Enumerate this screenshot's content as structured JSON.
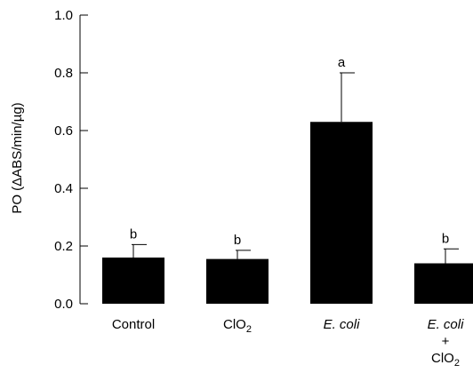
{
  "chart_data": {
    "type": "bar",
    "categories": [
      {
        "lines": [
          {
            "parts": [
              {
                "text": "Control"
              }
            ]
          }
        ]
      },
      {
        "lines": [
          {
            "parts": [
              {
                "text": "ClO"
              },
              {
                "text": "2",
                "sub": true
              }
            ]
          }
        ]
      },
      {
        "lines": [
          {
            "parts": [
              {
                "text": "E. coli",
                "italic": true
              }
            ]
          }
        ]
      },
      {
        "lines": [
          {
            "parts": [
              {
                "text": "E. coli",
                "italic": true
              }
            ]
          },
          {
            "parts": [
              {
                "text": "+"
              }
            ]
          },
          {
            "parts": [
              {
                "text": "ClO"
              },
              {
                "text": "2",
                "sub": true
              }
            ]
          }
        ]
      }
    ],
    "values": [
      0.16,
      0.155,
      0.63,
      0.14
    ],
    "errors": [
      0.045,
      0.03,
      0.17,
      0.05
    ],
    "significance": [
      "b",
      "b",
      "a",
      "b"
    ],
    "ylabel": "PO (ΔABS/min/µg)",
    "ylim": [
      0,
      1.0
    ],
    "yticks": [
      "0.0",
      "0.2",
      "0.4",
      "0.6",
      "0.8",
      "1.0"
    ],
    "bar_color": "#000000"
  }
}
